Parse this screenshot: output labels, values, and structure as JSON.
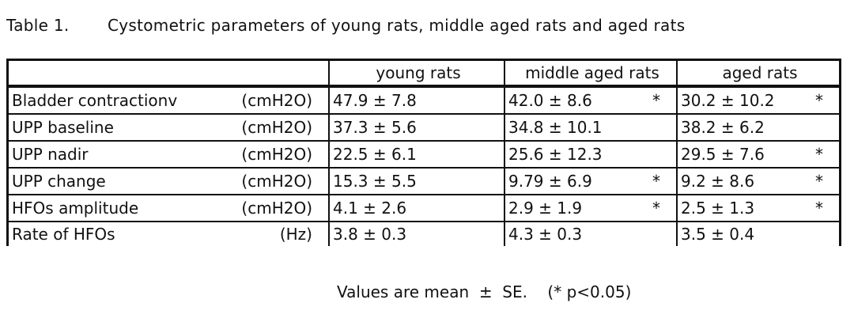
{
  "caption": {
    "number": "Table 1.",
    "title": "Cystometric parameters of young rats, middle aged rats and aged rats"
  },
  "table": {
    "columns": [
      "",
      "young rats",
      "middle aged rats",
      "aged rats"
    ],
    "rows": [
      {
        "param": "Bladder contractionv",
        "unit": "(cmH2O)",
        "young": "47.9 ± 7.8",
        "young_star": "",
        "middle": "42.0 ± 8.6",
        "middle_star": "*",
        "aged": "30.2 ± 10.2",
        "aged_star": "*"
      },
      {
        "param": "UPP baseline",
        "unit": "(cmH2O)",
        "young": "37.3 ± 5.6",
        "young_star": "",
        "middle": "34.8 ± 10.1",
        "middle_star": "",
        "aged": "38.2 ± 6.2",
        "aged_star": ""
      },
      {
        "param": "UPP nadir",
        "unit": "(cmH2O)",
        "young": "22.5 ± 6.1",
        "young_star": "",
        "middle": "25.6 ± 12.3",
        "middle_star": "",
        "aged": "29.5 ± 7.6",
        "aged_star": "*"
      },
      {
        "param": "UPP change",
        "unit": "(cmH2O)",
        "young": "15.3 ± 5.5",
        "young_star": "",
        "middle": "9.79 ± 6.9",
        "middle_star": "*",
        "aged": "9.2 ± 8.6",
        "aged_star": "*"
      },
      {
        "param": "HFOs amplitude",
        "unit": "(cmH2O)",
        "young": "4.1 ± 2.6",
        "young_star": "",
        "middle": "2.9 ± 1.9",
        "middle_star": "*",
        "aged": "2.5 ± 1.3",
        "aged_star": "*"
      },
      {
        "param": "Rate of HFOs",
        "unit": "(Hz)",
        "young": "3.8 ± 0.3",
        "young_star": "",
        "middle": "4.3 ± 0.3",
        "middle_star": "",
        "aged": "3.5 ± 0.4",
        "aged_star": ""
      }
    ]
  },
  "footnote": "Values are mean  ±  SE.    (* p<0.05)"
}
